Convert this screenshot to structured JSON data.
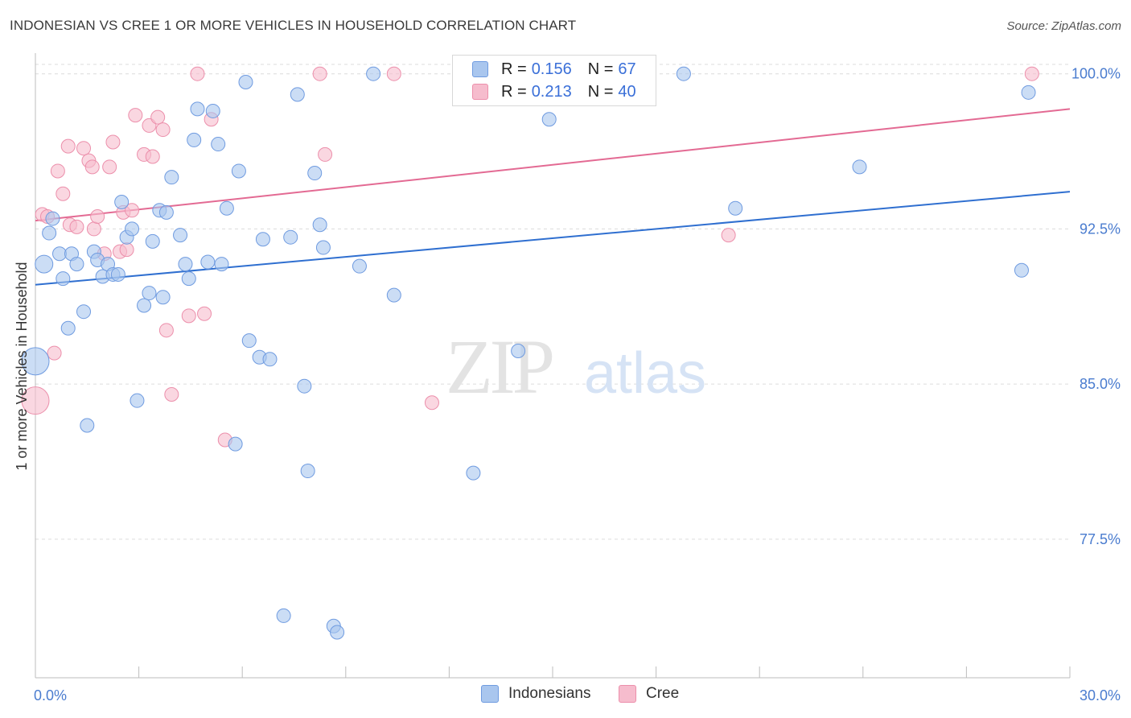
{
  "title": "INDONESIAN VS CREE 1 OR MORE VEHICLES IN HOUSEHOLD CORRELATION CHART",
  "source": "Source: ZipAtlas.com",
  "watermark": {
    "zip": "ZIP",
    "atlas": "atlas"
  },
  "legend_top": {
    "rows": [
      {
        "r_label": "R =",
        "r_value": "0.156",
        "n_label": "N =",
        "n_value": "67"
      },
      {
        "r_label": "R =",
        "r_value": "0.213",
        "n_label": "N =",
        "n_value": "40"
      }
    ]
  },
  "legend_bottom": {
    "indonesians": "Indonesians",
    "cree": "Cree"
  },
  "colors": {
    "indonesians_fill": "#a9c6ee",
    "indonesians_stroke": "#6f9be0",
    "indonesians_line": "#2f6fd0",
    "cree_fill": "#f6bccd",
    "cree_stroke": "#ec8fab",
    "cree_line": "#e36a93",
    "tick_text": "#4a7ccf",
    "grid": "#dcdcdc"
  },
  "chart_data": {
    "type": "scatter",
    "title": "INDONESIAN VS CREE 1 OR MORE VEHICLES IN HOUSEHOLD CORRELATION CHART",
    "xlabel": "",
    "ylabel": "1 or more Vehicles in Household",
    "xlim": [
      0,
      30
    ],
    "ylim": [
      70.8,
      101.0
    ],
    "x_tick_labels": [
      {
        "value": 0,
        "label": "0.0%"
      },
      {
        "value": 30,
        "label": "30.0%"
      }
    ],
    "y_tick_labels": [
      {
        "value": 100.0,
        "label": "100.0%"
      },
      {
        "value": 92.5,
        "label": "92.5%"
      },
      {
        "value": 85.0,
        "label": "85.0%"
      },
      {
        "value": 77.5,
        "label": "77.5%"
      }
    ],
    "series": [
      {
        "name": "Indonesians",
        "R": 0.156,
        "N": 67,
        "trend": {
          "x": [
            0,
            30
          ],
          "y": [
            89.8,
            94.3
          ]
        },
        "points": [
          [
            0.0,
            86.1
          ],
          [
            0.25,
            90.8
          ],
          [
            0.4,
            92.3
          ],
          [
            0.5,
            93.0
          ],
          [
            0.7,
            91.3
          ],
          [
            0.8,
            90.1
          ],
          [
            0.95,
            87.7
          ],
          [
            1.05,
            91.3
          ],
          [
            1.2,
            90.8
          ],
          [
            1.4,
            88.5
          ],
          [
            1.5,
            83.0
          ],
          [
            1.7,
            91.4
          ],
          [
            1.8,
            91.0
          ],
          [
            1.95,
            90.2
          ],
          [
            2.1,
            90.8
          ],
          [
            2.25,
            90.3
          ],
          [
            2.4,
            90.3
          ],
          [
            2.5,
            93.8
          ],
          [
            2.65,
            92.1
          ],
          [
            2.8,
            92.5
          ],
          [
            2.95,
            84.2
          ],
          [
            3.15,
            88.8
          ],
          [
            3.3,
            89.4
          ],
          [
            3.4,
            91.9
          ],
          [
            3.6,
            93.4
          ],
          [
            3.7,
            89.2
          ],
          [
            3.8,
            93.3
          ],
          [
            3.95,
            95.0
          ],
          [
            4.2,
            92.2
          ],
          [
            4.35,
            90.8
          ],
          [
            4.45,
            90.1
          ],
          [
            4.6,
            96.8
          ],
          [
            4.7,
            98.3
          ],
          [
            5.0,
            90.9
          ],
          [
            5.15,
            98.2
          ],
          [
            5.3,
            96.6
          ],
          [
            5.4,
            90.8
          ],
          [
            5.55,
            93.5
          ],
          [
            5.8,
            82.1
          ],
          [
            5.9,
            95.3
          ],
          [
            6.1,
            99.6
          ],
          [
            6.2,
            87.1
          ],
          [
            6.5,
            86.3
          ],
          [
            6.6,
            92.0
          ],
          [
            6.8,
            86.2
          ],
          [
            7.2,
            73.8
          ],
          [
            7.4,
            92.1
          ],
          [
            7.6,
            99.0
          ],
          [
            7.8,
            84.9
          ],
          [
            7.9,
            80.8
          ],
          [
            8.1,
            95.2
          ],
          [
            8.25,
            92.7
          ],
          [
            8.35,
            91.6
          ],
          [
            8.65,
            73.3
          ],
          [
            8.75,
            73.0
          ],
          [
            9.4,
            90.7
          ],
          [
            9.8,
            100.0
          ],
          [
            10.4,
            89.3
          ],
          [
            12.7,
            80.7
          ],
          [
            12.9,
            100.0
          ],
          [
            14.0,
            86.6
          ],
          [
            14.9,
            97.8
          ],
          [
            18.8,
            100.0
          ],
          [
            20.3,
            93.5
          ],
          [
            23.9,
            95.5
          ],
          [
            28.6,
            90.5
          ],
          [
            28.8,
            99.1
          ]
        ]
      },
      {
        "name": "Cree",
        "R": 0.213,
        "N": 40,
        "trend": {
          "x": [
            0,
            30
          ],
          "y": [
            92.9,
            98.3
          ]
        },
        "points": [
          [
            0.0,
            84.2
          ],
          [
            0.2,
            93.2
          ],
          [
            0.35,
            93.1
          ],
          [
            0.55,
            86.5
          ],
          [
            0.65,
            95.3
          ],
          [
            0.8,
            94.2
          ],
          [
            0.95,
            96.5
          ],
          [
            1.0,
            92.7
          ],
          [
            1.2,
            92.6
          ],
          [
            1.4,
            96.4
          ],
          [
            1.55,
            95.8
          ],
          [
            1.65,
            95.5
          ],
          [
            1.7,
            92.5
          ],
          [
            1.8,
            93.1
          ],
          [
            2.0,
            91.3
          ],
          [
            2.15,
            95.5
          ],
          [
            2.25,
            96.7
          ],
          [
            2.45,
            91.4
          ],
          [
            2.55,
            93.3
          ],
          [
            2.65,
            91.5
          ],
          [
            2.8,
            93.4
          ],
          [
            2.9,
            98.0
          ],
          [
            3.15,
            96.1
          ],
          [
            3.3,
            97.5
          ],
          [
            3.4,
            96.0
          ],
          [
            3.55,
            97.9
          ],
          [
            3.7,
            97.3
          ],
          [
            3.8,
            87.6
          ],
          [
            3.95,
            84.5
          ],
          [
            4.45,
            88.3
          ],
          [
            4.7,
            100.0
          ],
          [
            4.9,
            88.4
          ],
          [
            5.1,
            97.8
          ],
          [
            5.5,
            82.3
          ],
          [
            8.25,
            100.0
          ],
          [
            8.4,
            96.1
          ],
          [
            10.4,
            100.0
          ],
          [
            11.5,
            84.1
          ],
          [
            20.1,
            92.2
          ],
          [
            28.9,
            100.0
          ]
        ]
      }
    ]
  }
}
